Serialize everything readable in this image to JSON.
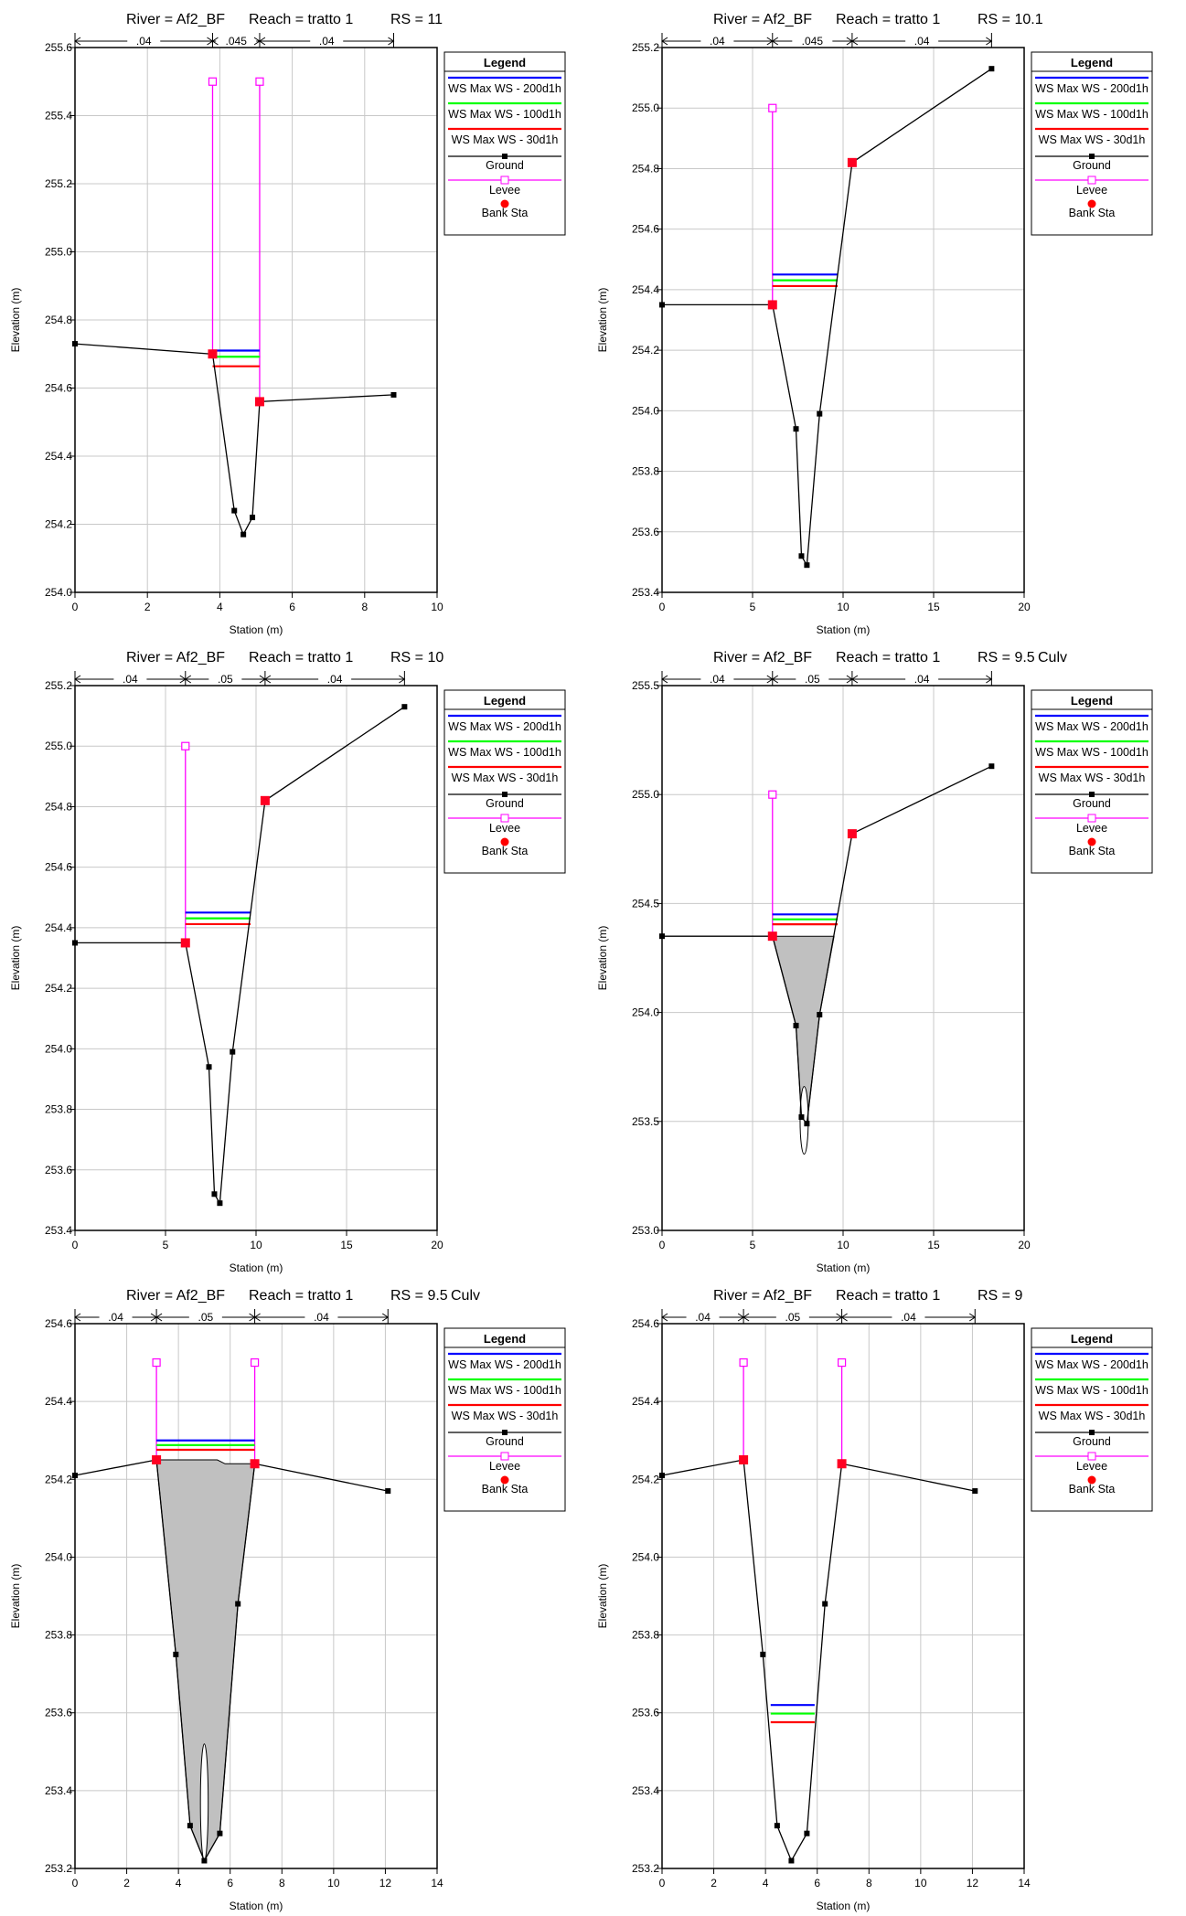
{
  "page": {
    "xlabel": "Station (m)",
    "ylabel": "Elevation (m)",
    "legend": {
      "title": "Legend",
      "entries": [
        {
          "label": "WS Max WS - 200d1h",
          "kind": "line",
          "color": "#0000ff"
        },
        {
          "label": "WS Max WS - 100d1h",
          "kind": "line",
          "color": "#00ff00"
        },
        {
          "label": "WS Max WS - 30d1h",
          "kind": "line",
          "color": "#ff0000"
        },
        {
          "label": "Ground",
          "kind": "ground",
          "color": "#000000"
        },
        {
          "label": "Levee",
          "kind": "levee",
          "color": "#ff00ff"
        },
        {
          "label": "Bank Sta",
          "kind": "bank",
          "color": "#ff0000"
        }
      ]
    }
  },
  "chart_data": [
    {
      "type": "line",
      "title": {
        "river": "River = Af2_BF",
        "reach": "Reach = tratto 1",
        "rs": "RS = 11",
        "culv": ""
      },
      "xlim": [
        0,
        10
      ],
      "xticks": [
        0,
        2,
        4,
        6,
        8,
        10
      ],
      "ylim": [
        254.0,
        255.6
      ],
      "yticks": [
        254.0,
        254.2,
        254.4,
        254.6,
        254.8,
        255.0,
        255.2,
        255.4,
        255.6
      ],
      "tick_decimals": 1,
      "ground": [
        [
          0,
          254.73
        ],
        [
          3.8,
          254.7
        ],
        [
          4.4,
          254.24
        ],
        [
          4.65,
          254.17
        ],
        [
          4.9,
          254.22
        ],
        [
          5.1,
          254.56
        ],
        [
          8.8,
          254.58
        ]
      ],
      "levees": [
        {
          "x": 3.8,
          "y0": 254.7,
          "y1": 255.5
        },
        {
          "x": 5.1,
          "y0": 254.56,
          "y1": 255.5
        }
      ],
      "banks": [
        [
          3.8,
          254.7
        ],
        [
          5.1,
          254.56
        ]
      ],
      "ws": [
        {
          "name": "WS Max WS - 200d1h",
          "y": 254.71,
          "x0": 3.8,
          "x1": 5.1
        },
        {
          "name": "WS Max WS - 100d1h",
          "y": 254.7,
          "x0": 3.8,
          "x1": 5.1
        },
        {
          "name": "WS Max WS - 30d1h",
          "y": 254.68,
          "x0": 3.8,
          "x1": 5.1
        }
      ],
      "mannings": {
        "breaks": [
          0,
          3.8,
          5.1,
          8.8
        ],
        "labels": [
          ".04",
          ".045",
          ".04"
        ]
      },
      "culvert": null
    },
    {
      "type": "line",
      "title": {
        "river": "River = Af2_BF",
        "reach": "Reach = tratto 1",
        "rs": "RS = 10.1",
        "culv": ""
      },
      "xlim": [
        0,
        20
      ],
      "xticks": [
        0,
        5,
        10,
        15,
        20
      ],
      "ylim": [
        253.4,
        255.2
      ],
      "yticks": [
        253.4,
        253.6,
        253.8,
        254.0,
        254.2,
        254.4,
        254.6,
        254.8,
        255.0,
        255.2
      ],
      "tick_decimals": 1,
      "ground": [
        [
          0,
          254.35
        ],
        [
          6.1,
          254.35
        ],
        [
          7.4,
          253.94
        ],
        [
          7.7,
          253.52
        ],
        [
          8.0,
          253.49
        ],
        [
          8.7,
          253.99
        ],
        [
          10.5,
          254.82
        ],
        [
          18.2,
          255.13
        ]
      ],
      "levees": [
        {
          "x": 6.1,
          "y0": 254.35,
          "y1": 255.0
        }
      ],
      "banks": [
        [
          6.1,
          254.35
        ],
        [
          10.5,
          254.82
        ]
      ],
      "ws": [
        {
          "name": "WS Max WS - 200d1h",
          "y": 254.45,
          "x0": 6.1,
          "x1": 9.7
        },
        {
          "name": "WS Max WS - 100d1h",
          "y": 254.44,
          "x0": 6.1,
          "x1": 9.7
        },
        {
          "name": "WS Max WS - 30d1h",
          "y": 254.43,
          "x0": 6.1,
          "x1": 9.7
        }
      ],
      "mannings": {
        "breaks": [
          0,
          6.1,
          10.5,
          18.2
        ],
        "labels": [
          ".04",
          ".045",
          ".04"
        ]
      },
      "culvert": null
    },
    {
      "type": "line",
      "title": {
        "river": "River = Af2_BF",
        "reach": "Reach = tratto 1",
        "rs": "RS = 10",
        "culv": ""
      },
      "xlim": [
        0,
        20
      ],
      "xticks": [
        0,
        5,
        10,
        15,
        20
      ],
      "ylim": [
        253.4,
        255.2
      ],
      "yticks": [
        253.4,
        253.6,
        253.8,
        254.0,
        254.2,
        254.4,
        254.6,
        254.8,
        255.0,
        255.2
      ],
      "tick_decimals": 1,
      "ground": [
        [
          0,
          254.35
        ],
        [
          6.1,
          254.35
        ],
        [
          7.4,
          253.94
        ],
        [
          7.7,
          253.52
        ],
        [
          8.0,
          253.49
        ],
        [
          8.7,
          253.99
        ],
        [
          10.5,
          254.82
        ],
        [
          18.2,
          255.13
        ]
      ],
      "levees": [
        {
          "x": 6.1,
          "y0": 254.35,
          "y1": 255.0
        }
      ],
      "banks": [
        [
          6.1,
          254.35
        ],
        [
          10.5,
          254.82
        ]
      ],
      "ws": [
        {
          "name": "WS Max WS - 200d1h",
          "y": 254.45,
          "x0": 6.1,
          "x1": 9.7
        },
        {
          "name": "WS Max WS - 100d1h",
          "y": 254.44,
          "x0": 6.1,
          "x1": 9.7
        },
        {
          "name": "WS Max WS - 30d1h",
          "y": 254.43,
          "x0": 6.1,
          "x1": 9.7
        }
      ],
      "mannings": {
        "breaks": [
          0,
          6.1,
          10.5,
          18.2
        ],
        "labels": [
          ".04",
          ".05",
          ".04"
        ]
      },
      "culvert": null
    },
    {
      "type": "line",
      "title": {
        "river": "River = Af2_BF",
        "reach": "Reach = tratto 1",
        "rs": "RS = 9.5",
        "culv": "Culv"
      },
      "xlim": [
        0,
        20
      ],
      "xticks": [
        0,
        5,
        10,
        15,
        20
      ],
      "ylim": [
        253.0,
        255.5
      ],
      "yticks": [
        253.0,
        253.5,
        254.0,
        254.5,
        255.0,
        255.5
      ],
      "tick_decimals": 1,
      "ground": [
        [
          0,
          254.35
        ],
        [
          6.1,
          254.35
        ],
        [
          7.4,
          253.94
        ],
        [
          7.7,
          253.52
        ],
        [
          8.0,
          253.49
        ],
        [
          8.7,
          253.99
        ],
        [
          10.5,
          254.82
        ],
        [
          18.2,
          255.13
        ]
      ],
      "levees": [
        {
          "x": 6.1,
          "y0": 254.35,
          "y1": 255.0
        }
      ],
      "banks": [
        [
          6.1,
          254.35
        ],
        [
          10.5,
          254.82
        ]
      ],
      "ws": [
        {
          "name": "WS Max WS - 200d1h",
          "y": 254.45,
          "x0": 6.1,
          "x1": 9.7
        },
        {
          "name": "WS Max WS - 100d1h",
          "y": 254.44,
          "x0": 6.1,
          "x1": 9.7
        },
        {
          "name": "WS Max WS - 30d1h",
          "y": 254.43,
          "x0": 6.1,
          "x1": 9.7
        }
      ],
      "mannings": {
        "breaks": [
          0,
          6.1,
          10.5,
          18.2
        ],
        "labels": [
          ".04",
          ".05",
          ".04"
        ]
      },
      "culvert": {
        "top": [
          [
            6.1,
            254.35
          ],
          [
            9.5,
            254.35
          ]
        ],
        "bottom": [
          [
            6.1,
            254.35
          ],
          [
            7.4,
            253.94
          ],
          [
            7.7,
            253.52
          ],
          [
            8.0,
            253.49
          ],
          [
            8.7,
            253.99
          ],
          [
            9.5,
            254.35
          ]
        ],
        "pier": {
          "x": 7.85,
          "w": 0.45,
          "y0": 253.35,
          "y1": 253.66
        }
      }
    },
    {
      "type": "line",
      "title": {
        "river": "River = Af2_BF",
        "reach": "Reach = tratto 1",
        "rs": "RS = 9.5",
        "culv": "Culv"
      },
      "xlim": [
        0,
        14
      ],
      "xticks": [
        0,
        2,
        4,
        6,
        8,
        10,
        12,
        14
      ],
      "ylim": [
        253.2,
        254.6
      ],
      "yticks": [
        253.2,
        253.4,
        253.6,
        253.8,
        254.0,
        254.2,
        254.4,
        254.6
      ],
      "tick_decimals": 1,
      "ground": [
        [
          0,
          254.21
        ],
        [
          3.15,
          254.25
        ],
        [
          3.9,
          253.75
        ],
        [
          4.45,
          253.31
        ],
        [
          5.0,
          253.22
        ],
        [
          5.6,
          253.29
        ],
        [
          6.3,
          253.88
        ],
        [
          6.95,
          254.24
        ],
        [
          12.1,
          254.17
        ]
      ],
      "levees": [
        {
          "x": 3.15,
          "y0": 254.25,
          "y1": 254.5
        },
        {
          "x": 6.95,
          "y0": 254.24,
          "y1": 254.5
        }
      ],
      "banks": [
        [
          3.15,
          254.25
        ],
        [
          6.95,
          254.24
        ]
      ],
      "ws": [
        {
          "name": "WS Max WS - 200d1h",
          "y": 254.3,
          "x0": 3.15,
          "x1": 6.95
        },
        {
          "name": "WS Max WS - 100d1h",
          "y": 254.295,
          "x0": 3.15,
          "x1": 6.95
        },
        {
          "name": "WS Max WS - 30d1h",
          "y": 254.29,
          "x0": 3.15,
          "x1": 6.95
        }
      ],
      "mannings": {
        "breaks": [
          0,
          3.15,
          6.95,
          12.1
        ],
        "labels": [
          ".04",
          ".05",
          ".04"
        ]
      },
      "culvert": {
        "top": [
          [
            3.15,
            254.25
          ],
          [
            5.5,
            254.25
          ],
          [
            5.8,
            254.24
          ],
          [
            6.95,
            254.24
          ]
        ],
        "bottom": [
          [
            3.15,
            254.25
          ],
          [
            3.9,
            253.75
          ],
          [
            4.45,
            253.31
          ],
          [
            5.0,
            253.22
          ],
          [
            5.6,
            253.29
          ],
          [
            6.3,
            253.88
          ],
          [
            6.95,
            254.24
          ]
        ],
        "pier": {
          "x": 5.0,
          "w": 0.3,
          "y0": 253.22,
          "y1": 253.52
        }
      }
    },
    {
      "type": "line",
      "title": {
        "river": "River = Af2_BF",
        "reach": "Reach = tratto 1",
        "rs": "RS = 9",
        "culv": ""
      },
      "xlim": [
        0,
        14
      ],
      "xticks": [
        0,
        2,
        4,
        6,
        8,
        10,
        12,
        14
      ],
      "ylim": [
        253.2,
        254.6
      ],
      "yticks": [
        253.2,
        253.4,
        253.6,
        253.8,
        254.0,
        254.2,
        254.4,
        254.6
      ],
      "tick_decimals": 1,
      "ground": [
        [
          0,
          254.21
        ],
        [
          3.15,
          254.25
        ],
        [
          3.9,
          253.75
        ],
        [
          4.45,
          253.31
        ],
        [
          5.0,
          253.22
        ],
        [
          5.6,
          253.29
        ],
        [
          6.3,
          253.88
        ],
        [
          6.95,
          254.24
        ],
        [
          12.1,
          254.17
        ]
      ],
      "levees": [
        {
          "x": 3.15,
          "y0": 254.25,
          "y1": 254.5
        },
        {
          "x": 6.95,
          "y0": 254.24,
          "y1": 254.5
        }
      ],
      "banks": [
        [
          3.15,
          254.25
        ],
        [
          6.95,
          254.24
        ]
      ],
      "ws": [
        {
          "name": "WS Max WS - 200d1h",
          "y": 253.62,
          "x0": 4.2,
          "x1": 5.9
        },
        {
          "name": "WS Max WS - 100d1h",
          "y": 253.605,
          "x0": 4.2,
          "x1": 5.9
        },
        {
          "name": "WS Max WS - 30d1h",
          "y": 253.59,
          "x0": 4.2,
          "x1": 5.9
        }
      ],
      "mannings": {
        "breaks": [
          0,
          3.15,
          6.95,
          12.1
        ],
        "labels": [
          ".04",
          ".05",
          ".04"
        ]
      },
      "culvert": null
    }
  ]
}
